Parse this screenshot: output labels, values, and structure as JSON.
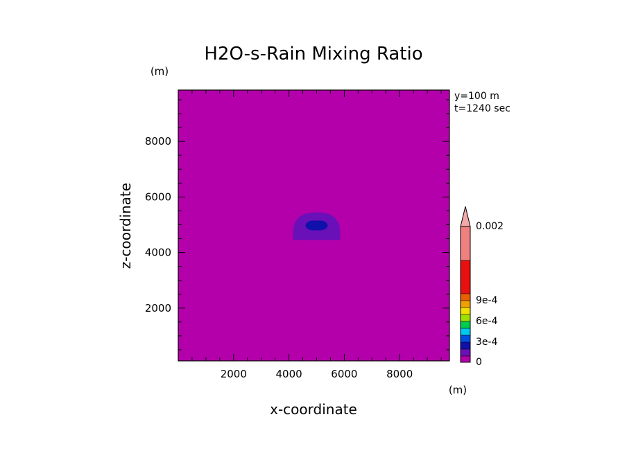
{
  "chart_data": {
    "type": "heatmap",
    "title": "H2O-s-Rain Mixing Ratio",
    "xlabel": "x-coordinate",
    "ylabel": "z-coordinate",
    "x_unit": "(m)",
    "y_unit": "(m)",
    "info_lines": [
      "y=100 m",
      "t=1240 sec"
    ],
    "xlim": [
      0,
      9800
    ],
    "ylim": [
      100,
      9850
    ],
    "x_ticks": [
      2000,
      4000,
      6000,
      8000
    ],
    "y_ticks": [
      2000,
      4000,
      6000,
      8000
    ],
    "x_tick_labels": [
      "2000",
      "4000",
      "6000",
      "8000"
    ],
    "y_tick_labels": [
      "2000",
      "4000",
      "6000",
      "8000"
    ],
    "background_color": "#b400aa",
    "contour_regions": [
      {
        "level": 0.0001,
        "color": "#6a10b8",
        "x_range": [
          4150,
          5850
        ],
        "z_range": [
          4450,
          5450
        ]
      },
      {
        "level": 0.0002,
        "color": "#1010aa",
        "x_range": [
          4600,
          5400
        ],
        "z_range": [
          4800,
          5150
        ]
      }
    ],
    "colorbar": {
      "labels": [
        "0",
        "3e-4",
        "6e-4",
        "9e-4",
        "0.002"
      ],
      "segments": [
        {
          "from": 0,
          "to": 0.0001,
          "color": "#b400aa"
        },
        {
          "from": 0.0001,
          "to": 0.0002,
          "color": "#6a10b8"
        },
        {
          "from": 0.0002,
          "to": 0.0003,
          "color": "#1010aa"
        },
        {
          "from": 0.0003,
          "to": 0.0004,
          "color": "#0050e0"
        },
        {
          "from": 0.0004,
          "to": 0.0005,
          "color": "#00c8f0"
        },
        {
          "from": 0.0005,
          "to": 0.0006,
          "color": "#00cc50"
        },
        {
          "from": 0.0006,
          "to": 0.0007,
          "color": "#a0e000"
        },
        {
          "from": 0.0007,
          "to": 0.0008,
          "color": "#f0e000"
        },
        {
          "from": 0.0008,
          "to": 0.0009,
          "color": "#f0a000"
        },
        {
          "from": 0.0009,
          "to": 0.001,
          "color": "#e86000"
        },
        {
          "from": 0.001,
          "to": 0.0015,
          "color": "#e81010"
        },
        {
          "from": 0.0015,
          "to": 0.002,
          "color": "#f08080"
        }
      ],
      "extend_color": "#f0a8a8"
    }
  }
}
